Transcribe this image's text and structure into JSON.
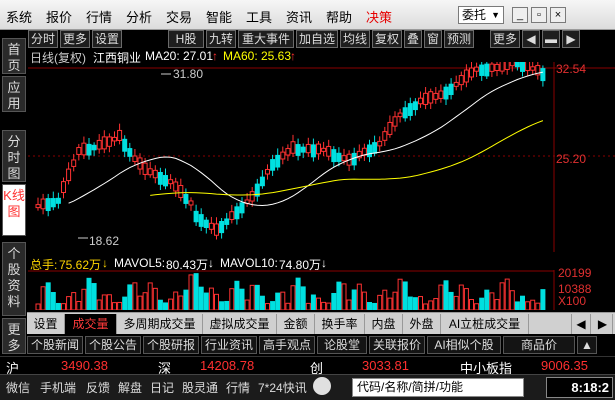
{
  "menu": {
    "items": [
      "系统",
      "报价",
      "行情",
      "分析",
      "交易",
      "智能",
      "工具",
      "资讯",
      "帮助",
      "决策"
    ],
    "weituo": "委托",
    "weituo_arrow": "▼"
  },
  "window": {
    "minimize": "_",
    "restore": "▫",
    "close": "×"
  },
  "sidebar": {
    "tabs": [
      "首页",
      "应用",
      "分时图",
      "K线图",
      "个股资料",
      "更多"
    ]
  },
  "toolbar": {
    "items": [
      "分时",
      "更多",
      "设置",
      "H股",
      "九转",
      "重大事件",
      "加自选",
      "均线",
      "复权",
      "叠",
      "窗",
      "预测",
      "更多"
    ],
    "play": "◀",
    "stop": "▬",
    "arrow": "▶"
  },
  "legend": {
    "type": "日线(复权)",
    "name": "江西铜业",
    "ma20_label": "MA20:",
    "ma20": "27.01",
    "ma20_arrow": "↑",
    "ma60_label": "MA60:",
    "ma60": "25.63",
    "ma60_arrow": "↑"
  },
  "axis": {
    "top": "32.54",
    "mid": "25.20"
  },
  "annotations": {
    "high": "31.80",
    "low": "18.62"
  },
  "volume": {
    "label": "总手:",
    "value": "75.62万",
    "value_arrow": "↓",
    "mavol5_label": "MAVOL5:",
    "mavol5": "80.43万",
    "mavol5_arrow": "↓",
    "mavol10_label": "MAVOL10:",
    "mavol10": "74.80万",
    "mavol10_arrow": "↓",
    "axis_top": "20199",
    "axis_mid": "10388",
    "axis_unit": "X100"
  },
  "tabs": {
    "items": [
      "设置",
      "成交量",
      "多周期成交量",
      "虚拟成交量",
      "金额",
      "换手率",
      "内盘",
      "外盘",
      "AI立桩成交量"
    ],
    "left": "◀",
    "right": "▶"
  },
  "newsbar": {
    "items": [
      "个股新闻",
      "个股公告",
      "个股研报",
      "行业资讯",
      "高手观点",
      "论股堂",
      "关联报价",
      "AI相似个股",
      "商品价"
    ],
    "more": "▲"
  },
  "indices": {
    "sh_label": "沪",
    "sh_value": "3490.38",
    "sz_label": "深",
    "sz_value": "14208.78",
    "cy_label": "创",
    "cy_value": "3033.81",
    "zxb_label": "中小板指",
    "zxb_value": "9006.35"
  },
  "taskbar": {
    "items": [
      "微信",
      "手机端",
      "反馈",
      "解盘",
      "日记",
      "股灵通",
      "行情",
      "7*24快讯"
    ],
    "search_placeholder": "代码/名称/简拼/功能",
    "clock": "8:18:2"
  },
  "colors": {
    "up": "#ff3232",
    "down": "#00e0e0",
    "ma20": "#ffffff",
    "ma60": "#ffff00",
    "accent": "#e60000"
  }
}
